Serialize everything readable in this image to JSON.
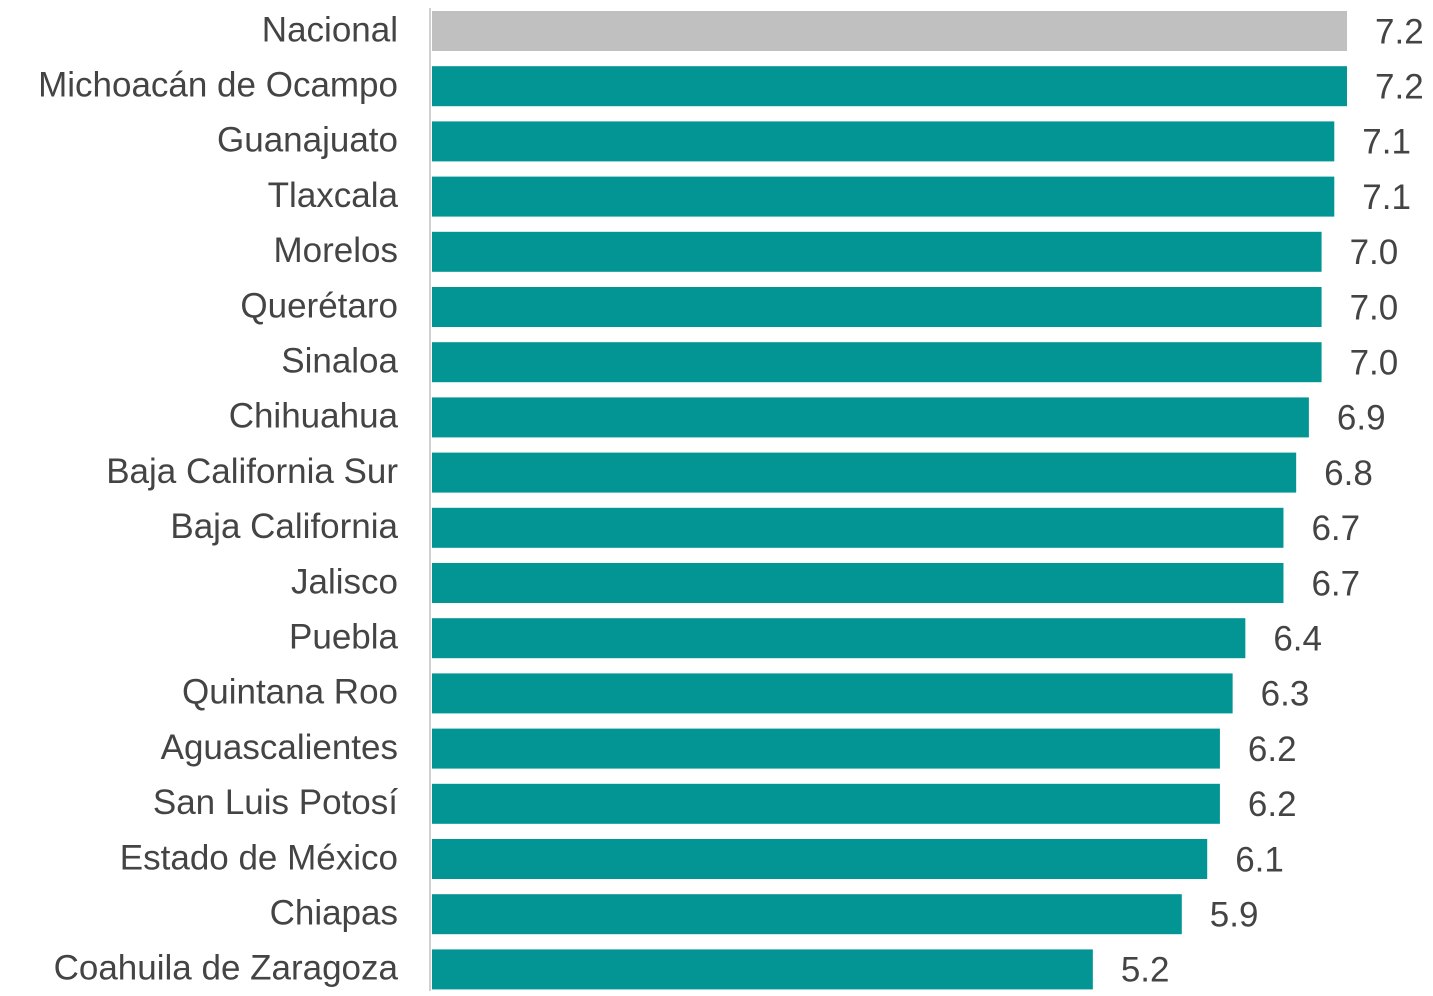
{
  "chart_data": {
    "type": "hbar",
    "categories": [
      "Nacional",
      "Michoacán de Ocampo",
      "Guanajuato",
      "Tlaxcala",
      "Morelos",
      "Querétaro",
      "Sinaloa",
      "Chihuahua",
      "Baja California Sur",
      "Baja California",
      "Jalisco",
      "Puebla",
      "Quintana Roo",
      "Aguascalientes",
      "San Luis Potosí",
      "Estado de México",
      "Chiapas",
      "Coahuila de Zaragoza"
    ],
    "values": [
      7.2,
      7.2,
      7.1,
      7.1,
      7.0,
      7.0,
      7.0,
      6.9,
      6.8,
      6.7,
      6.7,
      6.4,
      6.3,
      6.2,
      6.2,
      6.1,
      5.9,
      5.2
    ],
    "value_labels": [
      "7.2",
      "7.2",
      "7.1",
      "7.1",
      "7.0",
      "7.0",
      "7.0",
      "6.9",
      "6.8",
      "6.7",
      "6.7",
      "6.4",
      "6.3",
      "6.2",
      "6.2",
      "6.1",
      "5.9",
      "5.2"
    ],
    "colors": [
      "#c0c0c0",
      "#039494",
      "#039494",
      "#039494",
      "#039494",
      "#039494",
      "#039494",
      "#039494",
      "#039494",
      "#039494",
      "#039494",
      "#039494",
      "#039494",
      "#039494",
      "#039494",
      "#039494",
      "#039494",
      "#039494"
    ],
    "xlim": [
      0,
      7.2
    ]
  }
}
